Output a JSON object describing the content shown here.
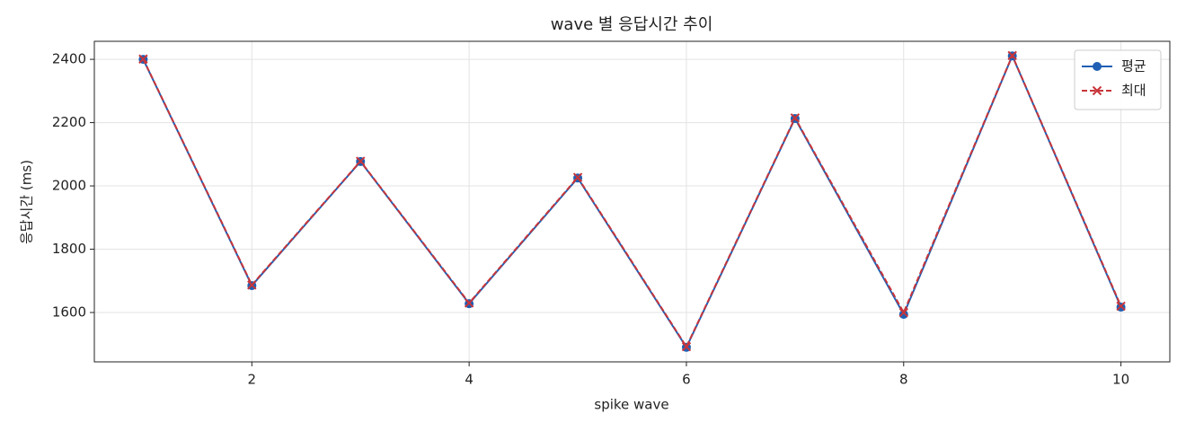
{
  "chart_data": {
    "type": "line",
    "title": "wave 별 응답시간 추이",
    "xlabel": "spike wave",
    "ylabel": "응답시간 (ms)",
    "x": [
      1,
      2,
      3,
      4,
      5,
      6,
      7,
      8,
      9,
      10
    ],
    "series": [
      {
        "name": "평균",
        "color": "#1f5fb4",
        "marker": "o",
        "dashed": false,
        "values": [
          2400,
          1685,
          2077,
          1628,
          2025,
          1490,
          2213,
          1594,
          2411,
          1617
        ]
      },
      {
        "name": "최대",
        "color": "#c8353a",
        "marker": "x",
        "dashed": true,
        "values": [
          2401,
          1687,
          2078,
          1630,
          2027,
          1492,
          2215,
          1600,
          2412,
          1620
        ]
      }
    ],
    "xlim": [
      0.55,
      10.45
    ],
    "xticks": [
      2,
      4,
      6,
      8,
      10
    ],
    "ylim": [
      1444,
      2457
    ],
    "yticks": [
      1600,
      1800,
      2000,
      2200,
      2400
    ],
    "grid": true,
    "legend": "upper right"
  }
}
